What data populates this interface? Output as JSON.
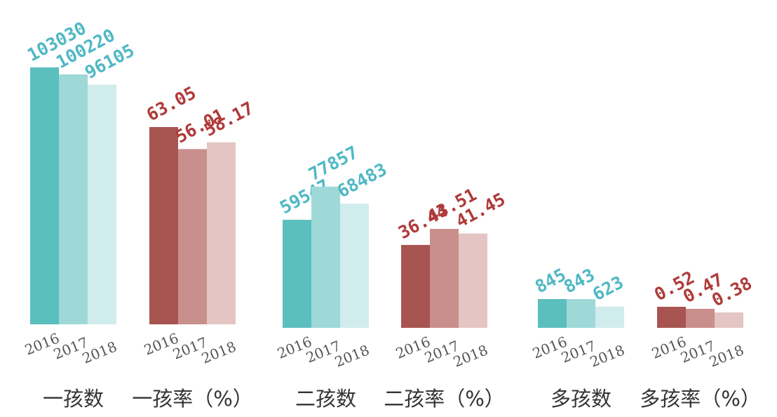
{
  "chart_data": {
    "type": "bar",
    "years": [
      "2016",
      "2017",
      "2018"
    ],
    "groups": [
      {
        "label": "一孩数",
        "values": [
          103030,
          100220,
          96105
        ],
        "value_labels": [
          "103030",
          "100220",
          "96105"
        ],
        "palette": "teal"
      },
      {
        "label": "一孩率（%）",
        "values": [
          63.05,
          56.01,
          58.17
        ],
        "value_labels": [
          "63.05",
          "56.01",
          "58.17"
        ],
        "palette": "red"
      },
      {
        "label": "二孩数",
        "values": [
          59547,
          77857,
          68483
        ],
        "value_labels": [
          "59547",
          "77857",
          "68483"
        ],
        "palette": "teal"
      },
      {
        "label": "二孩率（%）",
        "values": [
          36.44,
          43.51,
          41.45
        ],
        "value_labels": [
          "36.44",
          "43.51",
          "41.45"
        ],
        "palette": "red"
      },
      {
        "label": "多孩数",
        "values": [
          845,
          843,
          623
        ],
        "value_labels": [
          "845",
          "843",
          "623"
        ],
        "palette": "teal"
      },
      {
        "label": "多孩率（%）",
        "values": [
          0.52,
          0.47,
          0.38
        ],
        "value_labels": [
          "0.52",
          "0.47",
          "0.38"
        ],
        "palette": "red"
      }
    ],
    "colors": {
      "teal": [
        "#5bbfbe",
        "#9ed9d8",
        "#d1ecec"
      ],
      "red": [
        "#a85450",
        "#c98f8c",
        "#e4c5c3"
      ],
      "teal_label": "#4fb8c4",
      "red_label": "#b03a3a"
    }
  }
}
